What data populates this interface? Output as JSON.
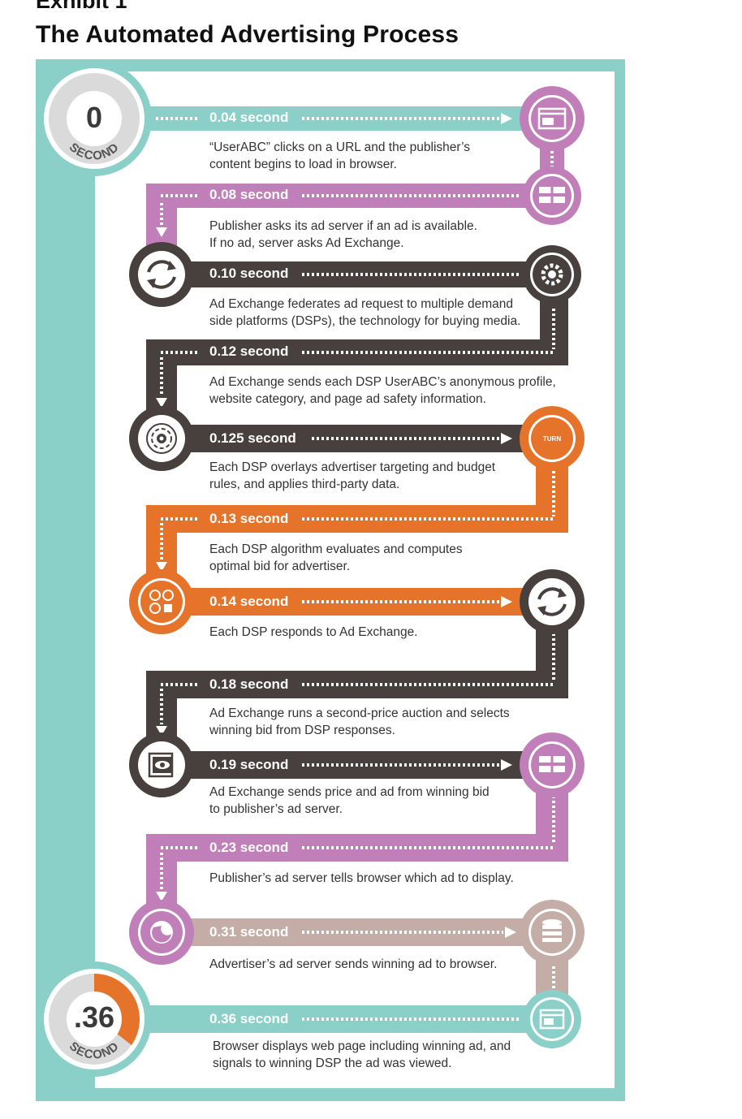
{
  "header": {
    "exhibit": "Exhibit 1",
    "title": "The Automated Advertising Process"
  },
  "start_badge": {
    "value": "0",
    "unit": "SECOND"
  },
  "end_badge": {
    "value": ".36",
    "unit": "SECOND"
  },
  "colors": {
    "teal": "#8bcfc9",
    "purple": "#c07fb8",
    "dark": "#48403f",
    "orange": "#e5732a",
    "taupe": "#c4ada6"
  },
  "steps": [
    {
      "time": "0.04 second",
      "text": "“UserABC” clicks on a URL and the publisher’s content begins to load in browser.",
      "icon": "browser-window-icon"
    },
    {
      "time": "0.08 second",
      "text": "Publisher asks its ad server if an ad is available. If no ad, server asks Ad Exchange.",
      "icon": "ad-server-icon"
    },
    {
      "time": "0.10 second",
      "text": "Ad Exchange federates ad request to multiple demand side platforms (DSPs), the technology for buying media.",
      "icon": "gear-icon"
    },
    {
      "time": "0.12 second",
      "text": "Ad Exchange sends each DSP UserABC’s anonymous profile, website category, and page ad safety information.",
      "icon": "exchange-arrows-icon"
    },
    {
      "time": "0.125 second",
      "text": "Each DSP overlays advertiser targeting and budget rules, and applies third-party data.",
      "icon": "target-icon"
    },
    {
      "time": "0.13 second",
      "text": "Each DSP algorithm evaluates and computes optimal bid for advertiser.",
      "icon": "turn-logo-icon"
    },
    {
      "time": "0.14 second",
      "text": "Each DSP responds to Ad Exchange.",
      "icon": "analytics-icon"
    },
    {
      "time": "0.18 second",
      "text": "Ad Exchange runs a second-price auction and selects winning bid from DSP responses.",
      "icon": "exchange-arrows-icon"
    },
    {
      "time": "0.19 second",
      "text": "Ad Exchange sends price and ad from winning bid to publisher’s ad server.",
      "icon": "view-window-icon"
    },
    {
      "time": "0.23 second",
      "text": "Publisher’s ad server tells browser which ad to display.",
      "icon": "ad-server-icon"
    },
    {
      "time": "0.31 second",
      "text": "Advertiser’s ad server sends winning ad to browser.",
      "icon": "browser-icon"
    },
    {
      "time": "0.36 second",
      "text": "Browser displays web page including winning ad, and signals to winning DSP the ad was viewed.",
      "icon": "database-icon"
    }
  ],
  "turn_logo_text": "TURN",
  "final_icon": "browser-window-icon"
}
